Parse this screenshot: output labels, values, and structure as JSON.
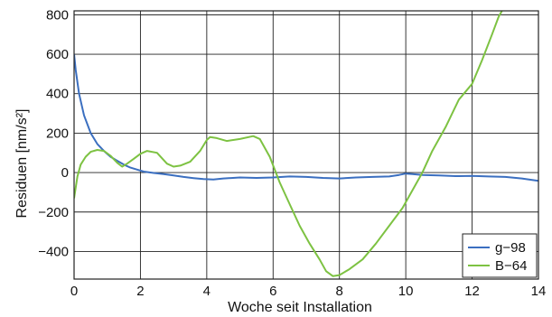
{
  "chart_data": {
    "type": "line",
    "xlabel": "Woche seit Installation",
    "ylabel": "Residuen [nm/s²]",
    "xlim": [
      0,
      14
    ],
    "ylim": [
      -540,
      820
    ],
    "xticks": [
      0,
      2,
      4,
      6,
      8,
      10,
      12,
      14
    ],
    "yticks": [
      -400,
      -200,
      0,
      200,
      400,
      600,
      800
    ],
    "xtick_labels": [
      "0",
      "2",
      "4",
      "6",
      "8",
      "10",
      "12",
      "14"
    ],
    "ytick_labels": [
      "−400",
      "−200",
      "0",
      "200",
      "400",
      "600",
      "800"
    ],
    "grid": true,
    "legend_position": "bottom-right",
    "series": [
      {
        "name": "g−98",
        "color": "#3b6fc0",
        "x": [
          0,
          0.05,
          0.15,
          0.3,
          0.5,
          0.7,
          0.9,
          1.1,
          1.3,
          1.5,
          1.7,
          1.9,
          2.1,
          2.4,
          2.7,
          3.0,
          3.3,
          3.6,
          3.9,
          4.2,
          4.5,
          5.0,
          5.5,
          6.0,
          6.5,
          7.0,
          7.5,
          8.0,
          8.5,
          9.0,
          9.5,
          9.8,
          10.0,
          10.2,
          10.5,
          11.0,
          11.5,
          12.0,
          12.5,
          13.0,
          13.5,
          14.0
        ],
        "y": [
          600,
          520,
          400,
          290,
          200,
          145,
          110,
          80,
          60,
          40,
          25,
          15,
          5,
          -2,
          -8,
          -15,
          -22,
          -28,
          -33,
          -35,
          -30,
          -25,
          -27,
          -25,
          -20,
          -22,
          -27,
          -30,
          -25,
          -22,
          -20,
          -12,
          -5,
          -8,
          -12,
          -15,
          -18,
          -17,
          -20,
          -22,
          -30,
          -42
        ]
      },
      {
        "name": "B−64",
        "color": "#7dc242",
        "x": [
          0,
          0.1,
          0.2,
          0.35,
          0.5,
          0.7,
          0.9,
          1.1,
          1.3,
          1.45,
          1.6,
          1.8,
          2.0,
          2.2,
          2.5,
          2.8,
          3.0,
          3.2,
          3.5,
          3.8,
          4.0,
          4.1,
          4.3,
          4.6,
          5.0,
          5.4,
          5.6,
          5.9,
          6.2,
          6.5,
          6.8,
          7.1,
          7.4,
          7.6,
          7.8,
          8.0,
          8.3,
          8.7,
          9.1,
          9.5,
          9.9,
          10.2,
          10.5,
          10.8,
          11.2,
          11.6,
          12.0,
          12.3,
          12.6,
          12.8,
          12.9
        ],
        "y": [
          -130,
          -20,
          40,
          80,
          105,
          115,
          110,
          85,
          50,
          30,
          45,
          70,
          95,
          110,
          100,
          45,
          30,
          35,
          55,
          110,
          165,
          180,
          175,
          160,
          170,
          185,
          170,
          80,
          -50,
          -160,
          -270,
          -360,
          -440,
          -500,
          -525,
          -520,
          -490,
          -440,
          -360,
          -270,
          -180,
          -90,
          0,
          110,
          230,
          370,
          450,
          570,
          700,
          790,
          820
        ]
      }
    ]
  }
}
